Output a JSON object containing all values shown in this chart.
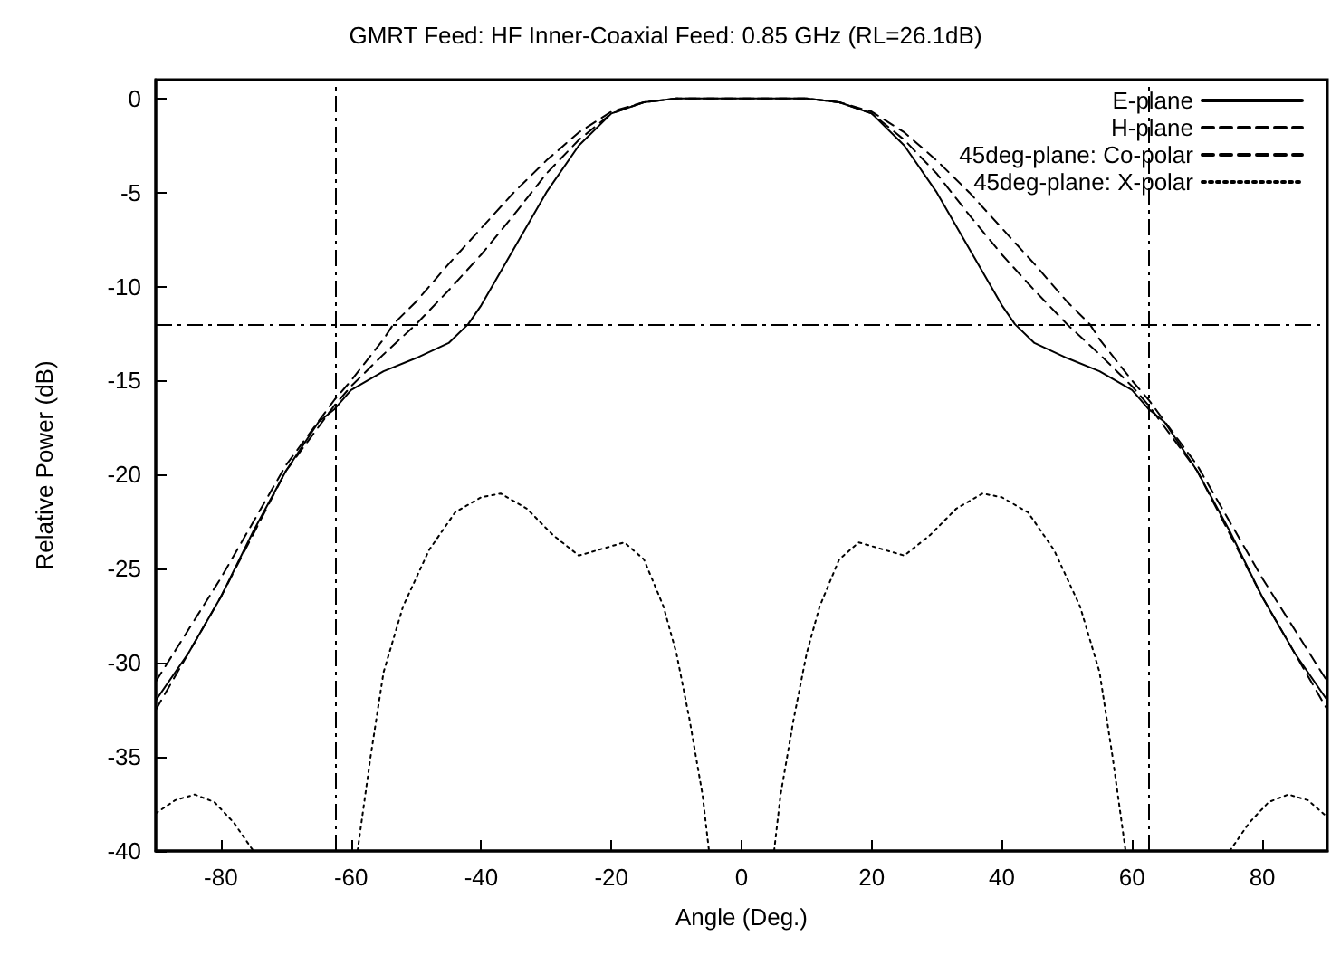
{
  "chart_data": {
    "type": "line",
    "title": "GMRT Feed: HF Inner-Coaxial Feed: 0.85 GHz (RL=26.1dB)",
    "xlabel": "Angle (Deg.)",
    "ylabel": "Relative Power (dB)",
    "xlim": [
      -90,
      90
    ],
    "xticks": [
      -80,
      -60,
      -40,
      -20,
      0,
      20,
      40,
      60,
      80
    ],
    "ylim": [
      -40,
      1
    ],
    "yticks": [
      -40,
      -35,
      -30,
      -25,
      -20,
      -15,
      -10,
      -5,
      0
    ],
    "grid": false,
    "legend": "top right",
    "marker": "none",
    "ref_lines": [
      {
        "axis": "x",
        "value": -62.5,
        "color": "#000000",
        "line_style": "dashdot"
      },
      {
        "axis": "x",
        "value": 62.5,
        "color": "#000000",
        "line_style": "dashdot"
      },
      {
        "axis": "y",
        "value": -12,
        "color": "#000000",
        "line_style": "dashdot"
      }
    ],
    "series": [
      {
        "name": "E-plane",
        "color": "#000000",
        "line_style": "solid",
        "x": [
          -90,
          -85,
          -80,
          -75,
          -70,
          -65,
          -62.5,
          -60,
          -55,
          -50,
          -45,
          -42,
          -40,
          -35,
          -30,
          -25,
          -20,
          -15,
          -10,
          0,
          10,
          15,
          20,
          25,
          30,
          35,
          40,
          42,
          45,
          50,
          55,
          60,
          62.5,
          65,
          70,
          75,
          80,
          85,
          90
        ],
        "values": [
          -32,
          -29.5,
          -26.5,
          -23,
          -19.8,
          -17.2,
          -16.5,
          -15.5,
          -14.5,
          -13.8,
          -13,
          -12,
          -11,
          -8,
          -5,
          -2.5,
          -0.8,
          -0.2,
          0,
          0,
          0,
          -0.2,
          -0.8,
          -2.5,
          -5,
          -8,
          -11,
          -12,
          -13,
          -13.8,
          -14.5,
          -15.5,
          -16.5,
          -17.2,
          -19.8,
          -23,
          -26.5,
          -29.5,
          -32
        ]
      },
      {
        "name": "H-plane",
        "color": "#000000",
        "line_style": "dashed",
        "x": [
          -90,
          -80,
          -70,
          -62.5,
          -60,
          -55,
          -53.5,
          -50,
          -45,
          -40,
          -35,
          -30,
          -25,
          -20,
          -15,
          -10,
          0,
          10,
          15,
          20,
          25,
          30,
          35,
          40,
          45,
          50,
          53.5,
          55,
          60,
          62.5,
          70,
          80,
          90
        ],
        "values": [
          -31,
          -25.5,
          -19.5,
          -16,
          -15,
          -12.8,
          -12,
          -10.8,
          -8.8,
          -6.9,
          -5,
          -3.3,
          -1.8,
          -0.7,
          -0.2,
          0,
          0,
          0,
          -0.2,
          -0.7,
          -1.8,
          -3.3,
          -5,
          -6.9,
          -8.8,
          -10.8,
          -12,
          -12.8,
          -15,
          -16,
          -19.5,
          -25.5,
          -31
        ]
      },
      {
        "name": "45deg-plane: Co-polar",
        "color": "#000000",
        "line_style": "dashed",
        "x": [
          -90,
          -80,
          -70,
          -62.5,
          -60,
          -55,
          -50,
          -45,
          -40,
          -35,
          -30,
          -25,
          -20,
          -15,
          -10,
          0,
          10,
          15,
          20,
          25,
          30,
          35,
          40,
          45,
          50,
          55,
          60,
          62.5,
          70,
          80,
          90
        ],
        "values": [
          -32.5,
          -26.5,
          -19.8,
          -16.3,
          -15.3,
          -13.6,
          -12,
          -10.2,
          -8.3,
          -6.2,
          -4,
          -2.2,
          -0.8,
          -0.2,
          0,
          0,
          0,
          -0.2,
          -0.8,
          -2.2,
          -4,
          -6.2,
          -8.3,
          -10.2,
          -12,
          -13.6,
          -15.3,
          -16.3,
          -19.8,
          -26.5,
          -32.5
        ]
      },
      {
        "name": "45deg-plane: X-polar",
        "color": "#000000",
        "line_style": "dotted",
        "x": [
          -90,
          -87,
          -84,
          -81,
          -78,
          -75,
          -67,
          -59,
          -57,
          -55,
          -52,
          -48,
          -44,
          -40,
          -37,
          -33,
          -29,
          -25,
          -22,
          -18,
          -15,
          -12,
          -10,
          -8,
          -6,
          -5,
          0,
          5,
          6,
          8,
          10,
          12,
          15,
          18,
          22,
          25,
          29,
          33,
          37,
          40,
          44,
          48,
          52,
          55,
          57,
          59,
          67,
          75,
          78,
          81,
          84,
          87,
          90
        ],
        "values": [
          -38,
          -37.3,
          -37,
          -37.4,
          -38.5,
          -40,
          null,
          -40,
          -35,
          -30.5,
          -27,
          -24,
          -22,
          -21.2,
          -21,
          -21.8,
          -23.2,
          -24.3,
          -24,
          -23.6,
          -24.5,
          -27,
          -29.5,
          -33,
          -37,
          -40,
          null,
          -40,
          -37,
          -33,
          -29.5,
          -27,
          -24.5,
          -23.6,
          -24,
          -24.3,
          -23.2,
          -21.8,
          -21,
          -21.2,
          -22,
          -24,
          -27,
          -30.5,
          -35,
          -40,
          null,
          -40,
          -38.5,
          -37.4,
          -37,
          -37.3,
          -38.2
        ]
      }
    ]
  }
}
